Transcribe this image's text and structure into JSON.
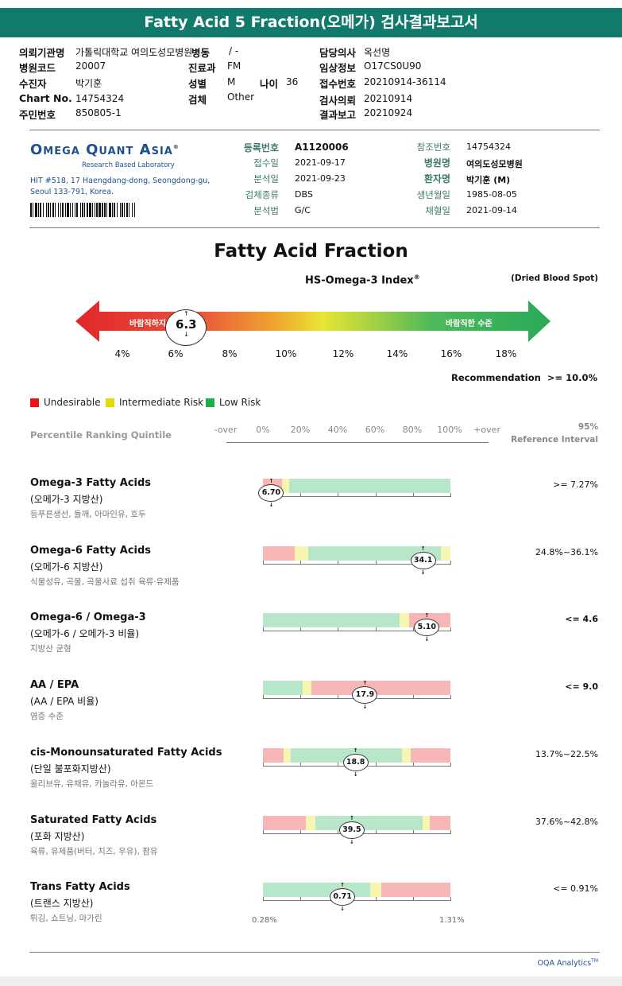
{
  "report_title": "Fatty Acid 5 Fraction(오메가) 검사결과보고서",
  "header": {
    "institution_label": "의뢰기관명",
    "institution_value": "가톨릭대학교 여의도성모병원",
    "ward_label": "병동",
    "ward_value": "/ -",
    "doctor_label": "담당의사",
    "doctor_value": "옥선명",
    "hospital_code_label": "병원코드",
    "hospital_code_value": "20007",
    "dept_label": "진료과",
    "dept_value": "FM",
    "clinical_label": "임상정보",
    "clinical_value": "O17CS0U90",
    "patient_label": "수진자",
    "patient_value": "박기훈",
    "sex_label": "성별",
    "sex_value": "M",
    "age_label": "나이",
    "age_value": "36",
    "receipt_label": "접수번호",
    "receipt_value": "20210914-36114",
    "chart_label": "Chart No.",
    "chart_value": "14754324",
    "specimen_label": "검체",
    "specimen_value": "Other",
    "request_label": "검사의뢰",
    "request_value": "20210914",
    "rrn_label": "주민번호",
    "rrn_value": "850805-1",
    "report_label": "결과보고",
    "report_value": "20210924"
  },
  "lab": {
    "name": "Omega Quant Asia",
    "registered": "®",
    "tagline": "Research Based Laboratory",
    "address1": "HIT #518, 17 Haengdang-dong, Seongdong-gu,",
    "address2": "Seoul 133-791, Korea."
  },
  "specimen": {
    "reg_no_label": "등록번호",
    "reg_no": "A1120006",
    "received_label": "접수일",
    "received": "2021-09-17",
    "analyzed_label": "분석일",
    "analyzed": "2021-09-23",
    "type_label": "검체종류",
    "type": "DBS",
    "method_label": "분석법",
    "method": "G/C",
    "ref_no_label": "참조번호",
    "ref_no": "14754324",
    "hospital_label": "병원명",
    "hospital": "여의도성모병원",
    "patient_label": "환자명",
    "patient": "박기훈 (M)",
    "dob_label": "생년월일",
    "dob": "1985-08-05",
    "collected_label": "채혈일",
    "collected": "2021-09-14"
  },
  "index": {
    "section_title": "Fatty Acid Fraction",
    "subtitle": "HS-Omega-3 Index",
    "subtitle_sup": "®",
    "sample_type": "(Dried Blood Spot)",
    "left_label": "바람직하지 않은 수준",
    "right_label": "바람직한 수준",
    "value": "6.3",
    "value_num": 6.3,
    "ticks": [
      "4%",
      "6%",
      "8%",
      "10%",
      "12%",
      "14%",
      "16%",
      "18%"
    ],
    "recommendation": "Recommendation  >= 10.0%"
  },
  "legend": [
    {
      "label": "Undesirable",
      "color": "#e8151d"
    },
    {
      "label": "Intermediate Risk",
      "color": "#dedd00"
    },
    {
      "label": "Low Risk",
      "color": "#1fae4b"
    }
  ],
  "percentile": {
    "label": "Percentile Ranking Quintile",
    "ticks": [
      "-over",
      "0%",
      "20%",
      "40%",
      "60%",
      "80%",
      "100%",
      "+over"
    ],
    "ref_header_1": "95%",
    "ref_header_2": "Reference Interval"
  },
  "rows": [
    {
      "title": "Omega-3 Fatty Acids",
      "sub": "(오메가-3 지방산)",
      "desc": "등푸른생선, 들깨, 아마인유, 호두",
      "value": "6.70",
      "ref": ">= 7.27%",
      "ref_bold": false,
      "marker": 0.04,
      "segments": [
        {
          "c": "red",
          "s": 0,
          "e": 0.1
        },
        {
          "c": "yel",
          "s": 0.1,
          "e": 0.14
        },
        {
          "c": "grn",
          "s": 0.14,
          "e": 1.0
        }
      ]
    },
    {
      "title": "Omega-6 Fatty Acids",
      "sub": "(오메가-6 지방산)",
      "desc": "식물성유, 곡물, 곡물사료 섭취 육류·유제품",
      "value": "34.1",
      "ref": "24.8%~36.1%",
      "ref_bold": false,
      "marker": 0.85,
      "segments": [
        {
          "c": "red",
          "s": 0,
          "e": 0.17
        },
        {
          "c": "yel",
          "s": 0.17,
          "e": 0.24
        },
        {
          "c": "grn",
          "s": 0.24,
          "e": 0.95
        },
        {
          "c": "yel",
          "s": 0.95,
          "e": 1.0
        }
      ]
    },
    {
      "title": "Omega-6 / Omega-3",
      "sub": "(오메가-6 / 오메가-3 비율)",
      "desc": "지방산 균형",
      "value": "5.10",
      "ref": "<= 4.6",
      "ref_bold": true,
      "marker": 0.87,
      "segments": [
        {
          "c": "grn",
          "s": 0,
          "e": 0.73
        },
        {
          "c": "yel",
          "s": 0.73,
          "e": 0.78
        },
        {
          "c": "red",
          "s": 0.78,
          "e": 1.0
        }
      ]
    },
    {
      "title": "AA / EPA",
      "sub": "(AA / EPA 비율)",
      "desc": "염증 수준",
      "value": "17.9",
      "ref": "<= 9.0",
      "ref_bold": true,
      "marker": 0.54,
      "segments": [
        {
          "c": "grn",
          "s": 0,
          "e": 0.21
        },
        {
          "c": "yel",
          "s": 0.21,
          "e": 0.26
        },
        {
          "c": "red",
          "s": 0.26,
          "e": 1.0
        }
      ]
    },
    {
      "title": "cis-Monounsaturated Fatty Acids",
      "sub": "(단일 불포화지방산)",
      "desc": "올리브유, 유채유, 카놀라유, 아몬드",
      "value": "18.8",
      "ref": "13.7%~22.5%",
      "ref_bold": false,
      "marker": 0.49,
      "segments": [
        {
          "c": "red",
          "s": 0,
          "e": 0.11
        },
        {
          "c": "yel",
          "s": 0.11,
          "e": 0.15
        },
        {
          "c": "grn",
          "s": 0.15,
          "e": 0.74
        },
        {
          "c": "yel",
          "s": 0.74,
          "e": 0.79
        },
        {
          "c": "red",
          "s": 0.79,
          "e": 1.0
        }
      ]
    },
    {
      "title": "Saturated Fatty Acids",
      "sub": "(포화 지방산)",
      "desc": "육류, 유제품(버터, 치즈, 우유), 팜유",
      "value": "39.5",
      "ref": "37.6%~42.8%",
      "ref_bold": false,
      "marker": 0.47,
      "segments": [
        {
          "c": "red",
          "s": 0,
          "e": 0.23
        },
        {
          "c": "yel",
          "s": 0.23,
          "e": 0.28
        },
        {
          "c": "grn",
          "s": 0.28,
          "e": 0.85
        },
        {
          "c": "yel",
          "s": 0.85,
          "e": 0.89
        },
        {
          "c": "red",
          "s": 0.89,
          "e": 1.0
        }
      ]
    },
    {
      "title": "Trans Fatty Acids",
      "sub": "(트랜스 지방산)",
      "desc": "튀김, 쇼트닝, 마가린",
      "value": "0.71",
      "ref": "<= 0.91%",
      "ref_bold": false,
      "marker": 0.42,
      "segments": [
        {
          "c": "grn",
          "s": 0,
          "e": 0.57
        },
        {
          "c": "yel",
          "s": 0.57,
          "e": 0.63
        },
        {
          "c": "red",
          "s": 0.63,
          "e": 1.0
        }
      ]
    }
  ],
  "scale_min": "0.28%",
  "scale_max": "1.31%",
  "footer": "OQA Analytics",
  "footer_sup": "TM"
}
